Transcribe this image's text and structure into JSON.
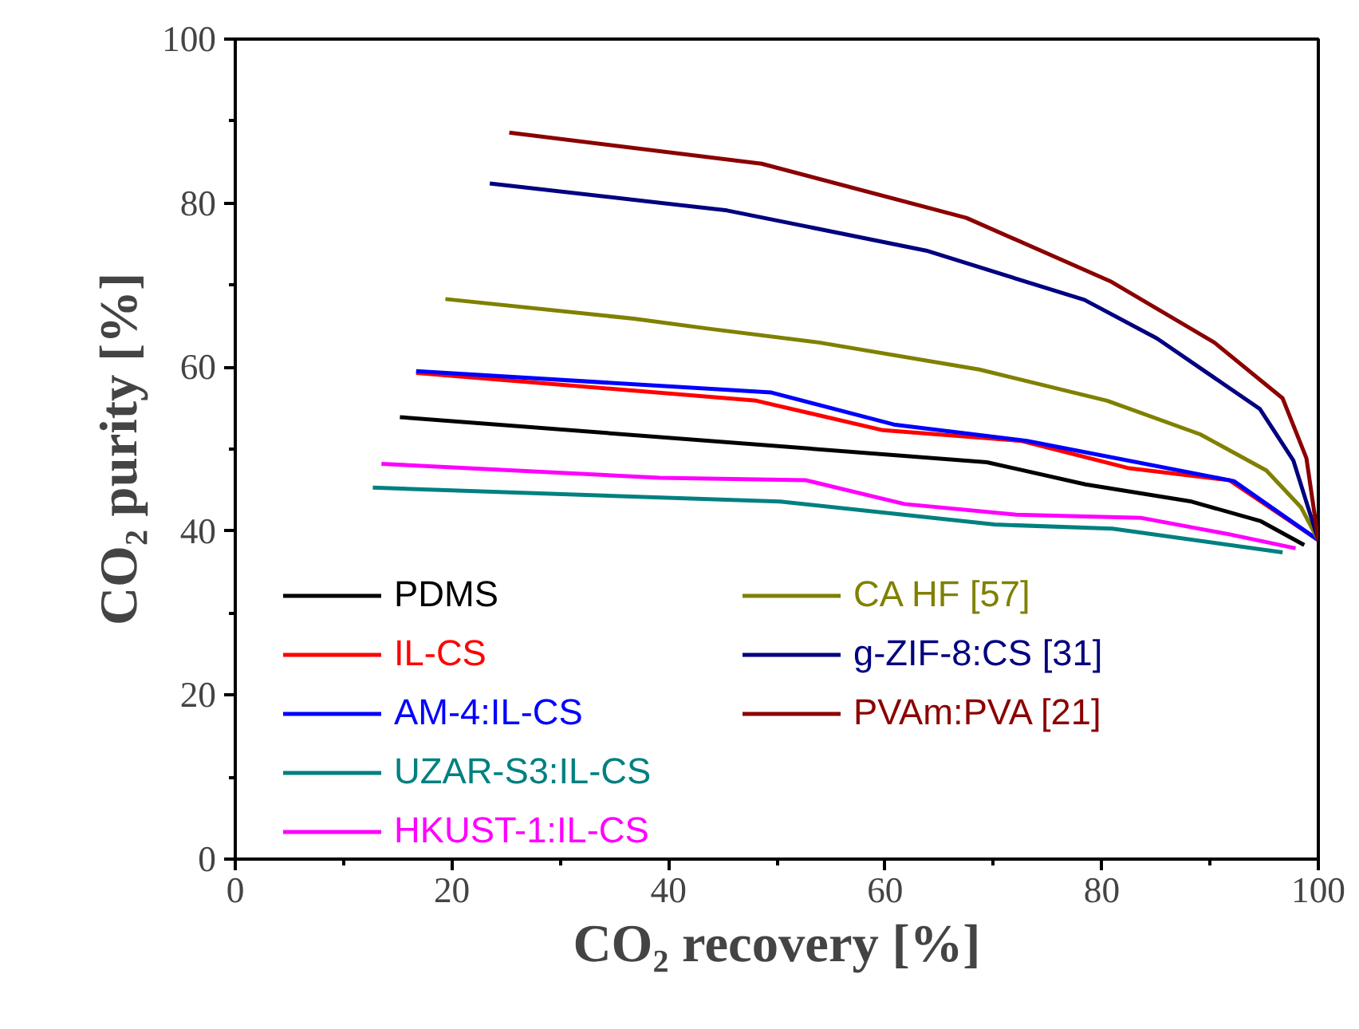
{
  "chart_data": {
    "type": "line",
    "xlabel": "CO₂ recovery [%]",
    "ylabel": "CO₂ purity [%]",
    "xlim": [
      0,
      100
    ],
    "ylim": [
      0,
      100
    ],
    "xticks": [
      0,
      {
        "value": 10,
        "label": null
      },
      20,
      {
        "value": 30,
        "label": null
      },
      40,
      {
        "value": 50,
        "label": null
      },
      60,
      {
        "value": 70,
        "label": null
      },
      80,
      {
        "value": 90,
        "label": null
      },
      100
    ],
    "yticks": [
      0,
      {
        "value": 10,
        "label": null
      },
      20,
      {
        "value": 30,
        "label": null
      },
      40,
      {
        "value": 50,
        "label": null
      },
      60,
      {
        "value": 70,
        "label": null
      },
      80,
      {
        "value": 90,
        "label": null
      },
      100
    ],
    "grid": false,
    "legend": "bottom left",
    "line_style": "solid",
    "marker": "none",
    "series": [
      {
        "name": "PDMS",
        "color": "#000000",
        "x": [
          15.2,
          69.4,
          78.5,
          88.3,
          94.7,
          98.7
        ],
        "values": [
          53.9,
          48.4,
          45.7,
          43.6,
          41.2,
          38.3
        ]
      },
      {
        "name": "IL-CS",
        "color": "#ff0000",
        "x": [
          16.7,
          48.1,
          59.8,
          72.6,
          82.4,
          91.8,
          100
        ],
        "values": [
          59.3,
          55.9,
          52.3,
          51.0,
          47.7,
          46.2,
          38.9
        ]
      },
      {
        "name": "AM-4:IL-CS",
        "color": "#0000ff",
        "x": [
          16.7,
          49.5,
          60.8,
          73.1,
          92.2,
          100
        ],
        "values": [
          59.5,
          56.9,
          53.0,
          51.0,
          46.1,
          38.9
        ]
      },
      {
        "name": "UZAR-S3:IL-CS",
        "color": "#008080",
        "x": [
          12.7,
          50.3,
          70.1,
          81.0,
          96.7
        ],
        "values": [
          45.3,
          43.6,
          40.8,
          40.3,
          37.4
        ]
      },
      {
        "name": "HKUST-1:IL-CS",
        "color": "#ff00ff",
        "x": [
          13.5,
          39.2,
          52.7,
          61.8,
          72.1,
          83.7,
          91.8,
          97.9
        ],
        "values": [
          48.2,
          46.5,
          46.2,
          43.3,
          42.0,
          41.6,
          39.6,
          37.9
        ]
      },
      {
        "name": "CA HF [57]",
        "color": "#808000",
        "x": [
          19.4,
          36.8,
          43.6,
          53.9,
          68.7,
          80.5,
          89.1,
          95.2,
          98.4,
          100
        ],
        "values": [
          68.3,
          65.9,
          64.7,
          63.0,
          59.7,
          55.9,
          51.8,
          47.4,
          42.9,
          38.9
        ]
      },
      {
        "name": "g-ZIF-8:CS [31]",
        "color": "#000080",
        "x": [
          23.5,
          45.4,
          63.8,
          78.4,
          85.1,
          94.6,
          97.7,
          100
        ],
        "values": [
          82.4,
          79.1,
          74.2,
          68.2,
          63.5,
          54.9,
          48.6,
          38.9
        ]
      },
      {
        "name": "PVAm:PVA [21]",
        "color": "#8b0000",
        "x": [
          25.3,
          48.6,
          67.5,
          80.9,
          90.4,
          96.7,
          98.9,
          100
        ],
        "values": [
          88.6,
          84.8,
          78.2,
          70.4,
          63.0,
          56.2,
          48.9,
          38.9
        ]
      }
    ]
  }
}
